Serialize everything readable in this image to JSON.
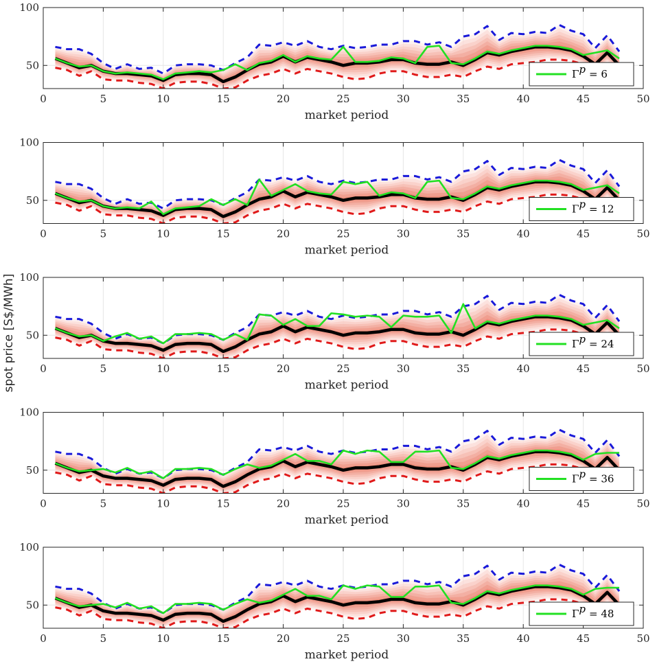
{
  "figure": {
    "ylabel": "spot price [S$/MWh]"
  },
  "colors": {
    "upper_bound": "#1a1ad9",
    "lower_bound": "#e01a1a",
    "median": "#000000",
    "scenario": "#22e022",
    "band": "#f4a091",
    "grid": "#e6e6e6"
  },
  "chart_data": [
    {
      "type": "line",
      "title": "",
      "xlabel": "market period",
      "ylabel": "",
      "xlim": [
        0,
        50
      ],
      "ylim": [
        30,
        100
      ],
      "xticks": [
        "0",
        "5",
        "10",
        "15",
        "20",
        "25",
        "30",
        "35",
        "40",
        "45",
        "50"
      ],
      "yticks": [
        "50",
        "100"
      ],
      "legend": {
        "entry": "Γ^p = 6",
        "symbol": "Γ",
        "superscript": "p",
        "text": "= 6",
        "location": "bottom-right"
      },
      "series": [
        {
          "name": "scenario",
          "x": [
            1,
            2,
            3,
            4,
            5,
            6,
            7,
            8,
            9,
            10,
            11,
            12,
            13,
            14,
            15,
            16,
            17,
            18,
            19,
            20,
            21,
            22,
            23,
            24,
            25,
            26,
            27,
            28,
            29,
            30,
            31,
            32,
            33,
            34,
            35,
            36,
            37,
            38,
            39,
            40,
            41,
            42,
            43,
            44,
            45,
            46,
            47,
            48
          ],
          "values": [
            56,
            52,
            49,
            50,
            45,
            43,
            44,
            43,
            42,
            38,
            43,
            44,
            45,
            44,
            46,
            51,
            46,
            52,
            54,
            59,
            53,
            58,
            56,
            55,
            66,
            53,
            53,
            54,
            57,
            56,
            52,
            66,
            67,
            52,
            51,
            56,
            62,
            60,
            63,
            65,
            67,
            67,
            66,
            64,
            59,
            61,
            63,
            56
          ]
        }
      ]
    },
    {
      "type": "line",
      "title": "",
      "xlabel": "market period",
      "ylabel": "",
      "xlim": [
        0,
        50
      ],
      "ylim": [
        30,
        100
      ],
      "xticks": [
        "0",
        "5",
        "10",
        "15",
        "20",
        "25",
        "30",
        "35",
        "40",
        "45",
        "50"
      ],
      "yticks": [
        "50",
        "100"
      ],
      "legend": {
        "entry": "Γ^p = 12",
        "symbol": "Γ",
        "superscript": "p",
        "text": "= 12",
        "location": "bottom-right"
      },
      "series": [
        {
          "name": "scenario",
          "x": [
            1,
            2,
            3,
            4,
            5,
            6,
            7,
            8,
            9,
            10,
            11,
            12,
            13,
            14,
            15,
            16,
            17,
            18,
            19,
            20,
            21,
            22,
            23,
            24,
            25,
            26,
            27,
            28,
            29,
            30,
            31,
            32,
            33,
            34,
            35,
            36,
            37,
            38,
            39,
            40,
            41,
            42,
            43,
            44,
            45,
            46,
            47,
            48
          ],
          "values": [
            56,
            52,
            49,
            50,
            45,
            43,
            44,
            43,
            49,
            38,
            43,
            44,
            45,
            51,
            46,
            51,
            46,
            68,
            54,
            59,
            64,
            58,
            56,
            55,
            66,
            64,
            66,
            54,
            57,
            56,
            52,
            66,
            67,
            52,
            51,
            56,
            62,
            60,
            63,
            65,
            67,
            67,
            66,
            64,
            59,
            61,
            63,
            56
          ]
        }
      ]
    },
    {
      "type": "line",
      "title": "",
      "xlabel": "market period",
      "ylabel": "",
      "xlim": [
        0,
        50
      ],
      "ylim": [
        30,
        100
      ],
      "xticks": [
        "0",
        "5",
        "10",
        "15",
        "20",
        "25",
        "30",
        "35",
        "40",
        "45",
        "50"
      ],
      "yticks": [
        "50",
        "100"
      ],
      "legend": {
        "entry": "Γ^p = 24",
        "symbol": "Γ",
        "superscript": "p",
        "text": "= 24",
        "location": "bottom-right"
      },
      "series": [
        {
          "name": "scenario",
          "x": [
            1,
            2,
            3,
            4,
            5,
            6,
            7,
            8,
            9,
            10,
            11,
            12,
            13,
            14,
            15,
            16,
            17,
            18,
            19,
            20,
            21,
            22,
            23,
            24,
            25,
            26,
            27,
            28,
            29,
            30,
            31,
            32,
            33,
            34,
            35,
            36,
            37,
            38,
            39,
            40,
            41,
            42,
            43,
            44,
            45,
            46,
            47,
            48
          ],
          "values": [
            56,
            52,
            49,
            50,
            45,
            49,
            52,
            47,
            49,
            43,
            51,
            51,
            52,
            51,
            46,
            51,
            46,
            68,
            67,
            59,
            64,
            58,
            58,
            69,
            68,
            66,
            67,
            66,
            57,
            67,
            66,
            66,
            67,
            52,
            77,
            56,
            62,
            60,
            63,
            65,
            67,
            67,
            66,
            64,
            59,
            61,
            63,
            56
          ]
        }
      ]
    },
    {
      "type": "line",
      "title": "",
      "xlabel": "market period",
      "ylabel": "",
      "xlim": [
        0,
        50
      ],
      "ylim": [
        30,
        100
      ],
      "xticks": [
        "0",
        "5",
        "10",
        "15",
        "20",
        "25",
        "30",
        "35",
        "40",
        "45",
        "50"
      ],
      "yticks": [
        "50",
        "100"
      ],
      "legend": {
        "entry": "Γ^p = 36",
        "symbol": "Γ",
        "superscript": "p",
        "text": "= 36",
        "location": "bottom-right"
      },
      "series": [
        {
          "name": "scenario",
          "x": [
            1,
            2,
            3,
            4,
            5,
            6,
            7,
            8,
            9,
            10,
            11,
            12,
            13,
            14,
            15,
            16,
            17,
            18,
            19,
            20,
            21,
            22,
            23,
            24,
            25,
            26,
            27,
            28,
            29,
            30,
            31,
            32,
            33,
            34,
            35,
            36,
            37,
            38,
            39,
            40,
            41,
            42,
            43,
            44,
            45,
            46,
            47,
            48
          ],
          "values": [
            56,
            52,
            49,
            50,
            51,
            48,
            52,
            47,
            49,
            43,
            51,
            51,
            52,
            51,
            46,
            51,
            55,
            52,
            54,
            59,
            64,
            58,
            58,
            55,
            67,
            64,
            67,
            66,
            57,
            57,
            66,
            66,
            67,
            52,
            51,
            56,
            62,
            60,
            63,
            65,
            67,
            67,
            66,
            64,
            59,
            64,
            65,
            65
          ]
        }
      ]
    },
    {
      "type": "line",
      "title": "",
      "xlabel": "market period",
      "ylabel": "",
      "xlim": [
        0,
        50
      ],
      "ylim": [
        30,
        100
      ],
      "xticks": [
        "0",
        "5",
        "10",
        "15",
        "20",
        "25",
        "30",
        "35",
        "40",
        "45",
        "50"
      ],
      "yticks": [
        "50",
        "100"
      ],
      "legend": {
        "entry": "Γ^p = 48",
        "symbol": "Γ",
        "superscript": "p",
        "text": "= 48",
        "location": "bottom-right"
      },
      "series": [
        {
          "name": "scenario",
          "x": [
            1,
            2,
            3,
            4,
            5,
            6,
            7,
            8,
            9,
            10,
            11,
            12,
            13,
            14,
            15,
            16,
            17,
            18,
            19,
            20,
            21,
            22,
            23,
            24,
            25,
            26,
            27,
            28,
            29,
            30,
            31,
            32,
            33,
            34,
            35,
            36,
            37,
            38,
            39,
            40,
            41,
            42,
            43,
            44,
            45,
            46,
            47,
            48
          ],
          "values": [
            56,
            52,
            49,
            50,
            51,
            48,
            52,
            47,
            49,
            43,
            51,
            51,
            52,
            51,
            46,
            51,
            55,
            52,
            54,
            59,
            64,
            58,
            58,
            55,
            67,
            64,
            67,
            66,
            57,
            57,
            66,
            66,
            67,
            52,
            51,
            56,
            62,
            60,
            63,
            65,
            67,
            67,
            66,
            64,
            59,
            64,
            65,
            65
          ]
        }
      ]
    }
  ],
  "shared_series": {
    "x": [
      1,
      2,
      3,
      4,
      5,
      6,
      7,
      8,
      9,
      10,
      11,
      12,
      13,
      14,
      15,
      16,
      17,
      18,
      19,
      20,
      21,
      22,
      23,
      24,
      25,
      26,
      27,
      28,
      29,
      30,
      31,
      32,
      33,
      34,
      35,
      36,
      37,
      38,
      39,
      40,
      41,
      42,
      43,
      44,
      45,
      46,
      47,
      48
    ],
    "median": [
      56,
      52,
      48,
      50,
      45,
      43,
      43,
      42,
      41,
      37,
      42,
      43,
      43,
      42,
      36,
      40,
      46,
      51,
      53,
      58,
      53,
      57,
      55,
      53,
      50,
      52,
      52,
      53,
      55,
      55,
      52,
      51,
      51,
      53,
      50,
      55,
      61,
      59,
      62,
      64,
      66,
      66,
      65,
      63,
      58,
      51,
      61,
      50
    ],
    "upper_bound": [
      66,
      64,
      64,
      60,
      52,
      47,
      51,
      47,
      48,
      43,
      50,
      51,
      51,
      50,
      46,
      52,
      57,
      68,
      67,
      70,
      67,
      71,
      66,
      64,
      67,
      65,
      66,
      68,
      68,
      71,
      71,
      68,
      70,
      66,
      75,
      77,
      84,
      72,
      78,
      77,
      79,
      78,
      85,
      80,
      77,
      65,
      76,
      62
    ],
    "lower_bound": [
      48,
      46,
      41,
      45,
      38,
      37,
      37,
      35,
      34,
      30,
      35,
      36,
      36,
      34,
      30,
      31,
      37,
      41,
      43,
      47,
      43,
      47,
      45,
      43,
      40,
      38,
      39,
      43,
      45,
      45,
      42,
      40,
      40,
      42,
      40,
      45,
      49,
      47,
      51,
      52,
      53,
      55,
      55,
      54,
      51,
      45,
      52,
      46
    ],
    "band_upper": [
      63,
      61,
      60,
      57,
      51,
      47,
      49,
      47,
      47,
      43,
      49,
      50,
      50,
      49,
      45,
      50,
      55,
      63,
      64,
      67,
      64,
      68,
      63,
      62,
      62,
      62,
      63,
      65,
      65,
      68,
      67,
      65,
      66,
      63,
      67,
      71,
      74,
      71,
      75,
      76,
      78,
      78,
      79,
      76,
      73,
      62,
      71,
      60
    ],
    "band_lower": [
      51,
      48,
      44,
      47,
      41,
      39,
      39,
      38,
      37,
      33,
      38,
      39,
      39,
      38,
      32,
      34,
      40,
      44,
      46,
      50,
      46,
      50,
      48,
      46,
      43,
      42,
      43,
      46,
      48,
      48,
      45,
      44,
      44,
      46,
      43,
      48,
      53,
      51,
      54,
      55,
      57,
      58,
      58,
      56,
      53,
      47,
      55,
      48
    ]
  }
}
